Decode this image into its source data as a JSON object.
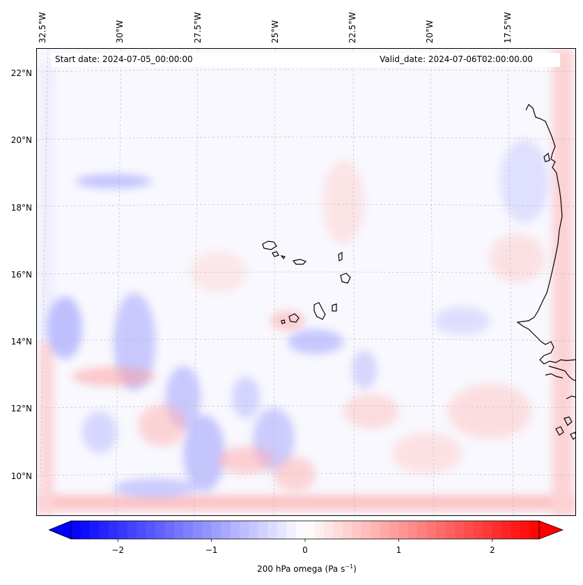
{
  "map": {
    "start_date_label": "Start date: 2024-07-05_00:00:00",
    "valid_date_label": "Valid_date: 2024-07-06T02:00:00.00",
    "longitude_labels": [
      "32.5°W",
      "30°W",
      "27.5°W",
      "25°W",
      "22.5°W",
      "20°W",
      "17.5°W"
    ],
    "latitude_labels": [
      "22°N",
      "20°N",
      "18°N",
      "16°N",
      "14°N",
      "12°N",
      "10°N"
    ],
    "variable": "200 hPa omega",
    "colors": {
      "negative": "#0000ff",
      "positive": "#ff0000",
      "neutral": "#ffffff",
      "coastline": "#000000",
      "gridline": "#b0b0b0"
    }
  },
  "colorbar": {
    "label_main": "200 hPa omega (Pa s",
    "label_exp": "−1",
    "label_end": ")",
    "ticks": [
      "−2",
      "−1",
      "0",
      "1",
      "2"
    ],
    "tick_values": [
      -2,
      -1,
      0,
      1,
      2
    ],
    "range": [
      -2.5,
      2.5
    ],
    "extend": "both"
  }
}
